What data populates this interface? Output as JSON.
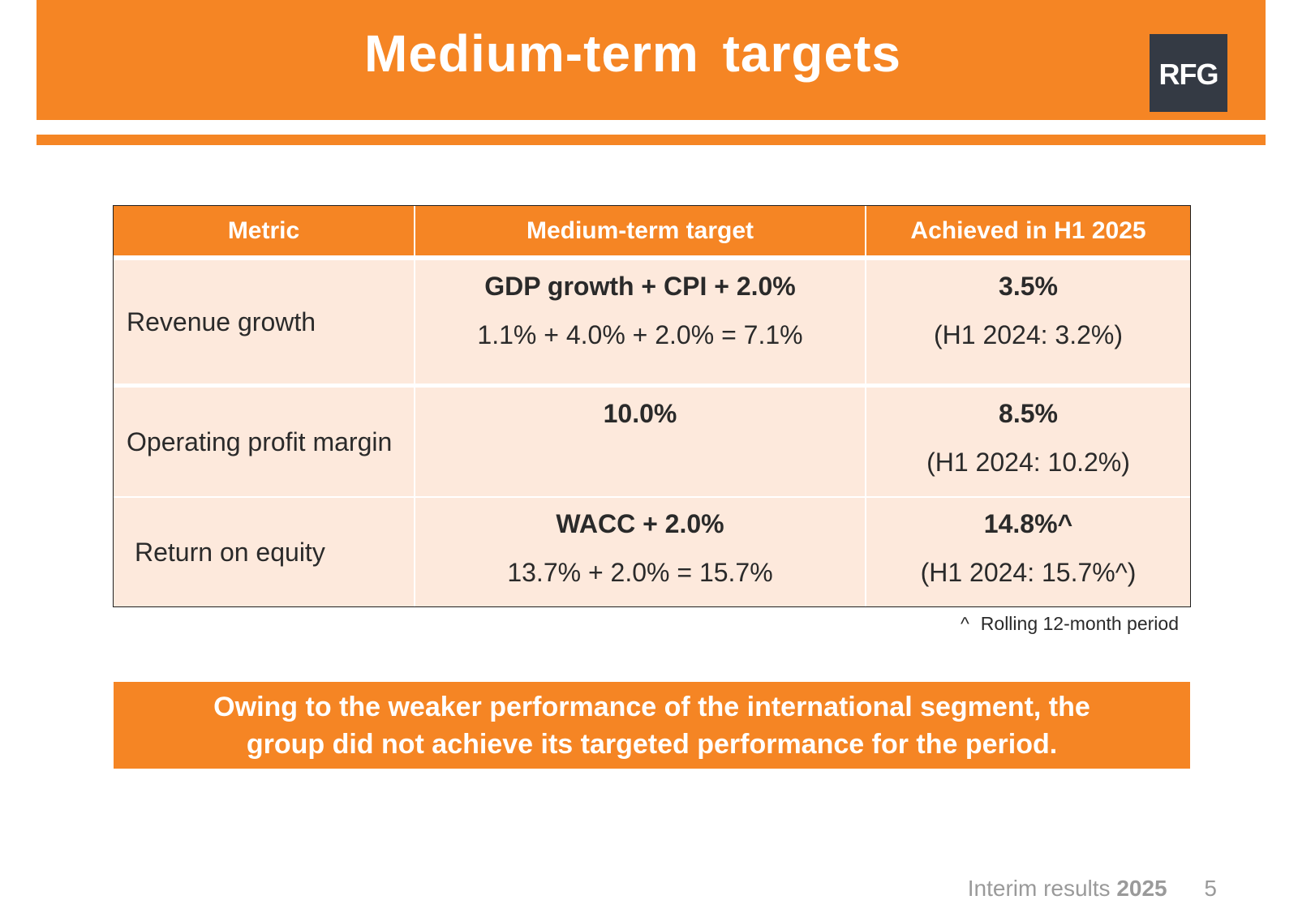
{
  "header": {
    "title": "Medium-term targets",
    "logo_text": "RFG"
  },
  "table": {
    "columns": [
      "Metric",
      "Medium-term target",
      "Achieved in H1 2025"
    ],
    "rows": [
      {
        "metric": "Revenue growth",
        "target_main": "GDP growth + CPI + 2.0%",
        "target_detail": "1.1% + 4.0% + 2.0% = 7.1%",
        "achieved_main": "3.5%",
        "achieved_detail": "(H1 2024: 3.2%)"
      },
      {
        "metric": "Operating profit margin",
        "target_main": "10.0%",
        "target_detail": "",
        "achieved_main": "8.5%",
        "achieved_detail": "(H1 2024: 10.2%)"
      },
      {
        "metric": "Return on equity",
        "target_main": "WACC + 2.0%",
        "target_detail": "13.7% + 2.0% = 15.7%",
        "achieved_main": "14.8%^",
        "achieved_detail": "(H1 2024: 15.7%^)"
      }
    ]
  },
  "footnote": {
    "symbol": "^",
    "text": "Rolling 12-month period"
  },
  "summary": {
    "line1": "Owing to the weaker performance of the international segment, the",
    "line2": "group did not achieve its targeted performance for the period."
  },
  "footer": {
    "label": "Interim results",
    "year": "2025",
    "page": "5"
  },
  "colors": {
    "accent": "#F58524",
    "row_fill": "#FDE9DC",
    "logo_bg": "#343A44"
  }
}
